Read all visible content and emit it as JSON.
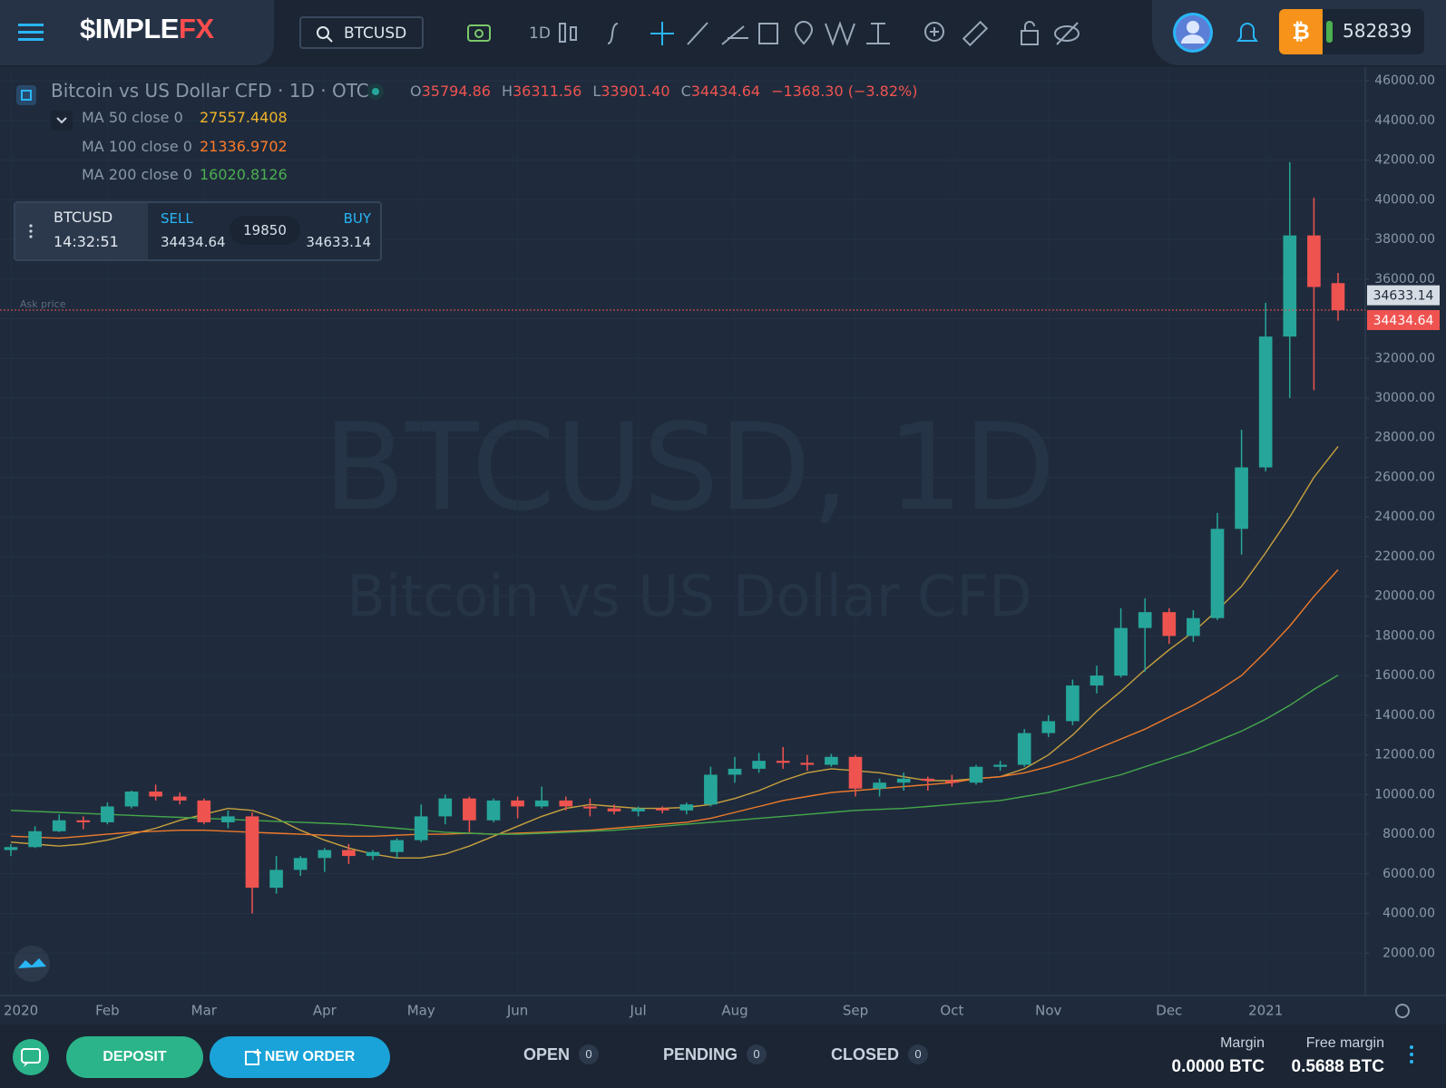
{
  "header": {
    "logo_main": "$IMPLE",
    "logo_accent": "FX",
    "search": "BTCUSD",
    "interval": "1D",
    "balance": "582839"
  },
  "legend": {
    "title": "Bitcoin vs US Dollar CFD · 1D · OTC",
    "ohlc": [
      {
        "label": "O",
        "value": 35794.86
      },
      {
        "label": "H",
        "value": 36311.56
      },
      {
        "label": "L",
        "value": 33901.4,
        "text": "33901.40"
      },
      {
        "label": "C",
        "value": 34434.64
      }
    ],
    "change": "−1368.30 (−3.82%)"
  },
  "trade": {
    "symbol": "BTCUSD",
    "time": "14:32:51",
    "sell_label": "SELL",
    "spread": 19850,
    "buy_label": "BUY"
  },
  "ask_label": "Ask price",
  "watermark": {
    "line1": "BTCUSD, 1D",
    "line2": "Bitcoin vs US Dollar CFD"
  },
  "chart_data": {
    "type": "candlestick",
    "categories": [
      "2020",
      null,
      null,
      null,
      "Feb",
      null,
      null,
      null,
      "Mar",
      null,
      null,
      null,
      null,
      "Apr",
      null,
      null,
      null,
      "May",
      null,
      null,
      null,
      "Jun",
      null,
      null,
      null,
      null,
      "Jul",
      null,
      null,
      null,
      "Aug",
      null,
      null,
      null,
      null,
      "Sep",
      null,
      null,
      null,
      "Oct",
      null,
      null,
      null,
      "Nov",
      null,
      null,
      null,
      null,
      "Dec",
      null,
      null,
      null,
      "2021",
      null,
      null,
      null
    ],
    "open": [
      7200,
      7350,
      8150,
      8700,
      8600,
      9400,
      10150,
      9900,
      9700,
      8600,
      8900,
      5300,
      6200,
      6800,
      7200,
      6900,
      7100,
      7700,
      8900,
      9800,
      8700,
      9700,
      9400,
      9700,
      9400,
      9300,
      9150,
      9300,
      9200,
      9500,
      11000,
      11300,
      11700,
      11600,
      11500,
      11900,
      10300,
      10600,
      10800,
      10700,
      10600,
      11400,
      11500,
      13100,
      13700,
      15500,
      16000,
      18400,
      19200,
      18000,
      18900,
      23400,
      26500,
      33100,
      38200,
      35794.86
    ],
    "high": [
      7500,
      8400,
      9000,
      8900,
      9600,
      10200,
      10500,
      10100,
      9800,
      9200,
      9100,
      6900,
      6900,
      7300,
      7500,
      7200,
      7800,
      9500,
      10000,
      9900,
      9800,
      9900,
      10400,
      9900,
      9800,
      9500,
      9400,
      9400,
      9600,
      11400,
      11900,
      12100,
      12400,
      12000,
      12050,
      12000,
      10800,
      11100,
      10900,
      11000,
      11500,
      11700,
      13300,
      14000,
      15800,
      16500,
      19400,
      19900,
      19400,
      19300,
      24200,
      28400,
      34800,
      41900,
      40100,
      36311.56
    ],
    "low": [
      6900,
      7300,
      8100,
      8250,
      8500,
      9300,
      9700,
      9500,
      8500,
      8300,
      4000,
      5000,
      5900,
      6100,
      6500,
      6700,
      6800,
      7600,
      8500,
      8100,
      8600,
      8800,
      9300,
      9200,
      8900,
      9000,
      8900,
      9050,
      9000,
      9400,
      10600,
      11100,
      11300,
      11200,
      11400,
      9900,
      9900,
      10200,
      10200,
      10400,
      10500,
      11200,
      11400,
      12900,
      13500,
      15100,
      15900,
      16200,
      17600,
      17700,
      18800,
      22100,
      26300,
      30000,
      30400,
      33901.4
    ],
    "close": [
      7350,
      8150,
      8700,
      8600,
      9400,
      10150,
      9900,
      9700,
      8600,
      8900,
      5300,
      6200,
      6800,
      7200,
      6900,
      7100,
      7700,
      8900,
      9800,
      8700,
      9700,
      9400,
      9700,
      9400,
      9300,
      9150,
      9300,
      9200,
      9500,
      11000,
      11300,
      11700,
      11600,
      11500,
      11900,
      10300,
      10600,
      10800,
      10700,
      10600,
      11400,
      11500,
      13100,
      13700,
      15500,
      16000,
      18400,
      19200,
      18000,
      18900,
      23400,
      26500,
      33100,
      38200,
      35600,
      34434.64
    ],
    "up_color": "#26a69a",
    "down_color": "#ef5350",
    "series": [
      {
        "name": "MA 50 close 0",
        "color": "#f0b429",
        "line_color": "#c9a13e",
        "values": [
          7600,
          7500,
          7400,
          7500,
          7700,
          8000,
          8300,
          8700,
          9000,
          9300,
          9200,
          8800,
          8200,
          7700,
          7300,
          7000,
          6800,
          6800,
          7000,
          7400,
          7900,
          8400,
          8900,
          9300,
          9500,
          9400,
          9300,
          9300,
          9350,
          9500,
          9800,
          10200,
          10700,
          11100,
          11300,
          11200,
          11100,
          10900,
          10700,
          10700,
          10800,
          10900,
          11300,
          12000,
          13000,
          14200,
          15200,
          16300,
          17300,
          18200,
          19300,
          20500,
          22200,
          24000,
          26000,
          27557.4408
        ]
      },
      {
        "name": "MA 100 close 0",
        "color": "#ff7b29",
        "line_color": "#f07a2a",
        "values": [
          7900,
          7850,
          7800,
          7900,
          8000,
          8100,
          8150,
          8200,
          8200,
          8150,
          8100,
          8050,
          8000,
          7950,
          7900,
          7900,
          7950,
          8000,
          8000,
          8050,
          8000,
          8050,
          8100,
          8150,
          8200,
          8300,
          8400,
          8500,
          8600,
          8800,
          9100,
          9400,
          9700,
          9900,
          10100,
          10200,
          10300,
          10400,
          10500,
          10600,
          10800,
          10900,
          11100,
          11400,
          11800,
          12300,
          12800,
          13300,
          13900,
          14500,
          15200,
          16000,
          17200,
          18500,
          20000,
          21336.9702
        ]
      },
      {
        "name": "MA 200 close 0",
        "color": "#4caf50",
        "line_color": "#45a84b",
        "values": [
          9200,
          9150,
          9100,
          9050,
          9000,
          8950,
          8900,
          8850,
          8800,
          8750,
          8700,
          8650,
          8600,
          8550,
          8500,
          8400,
          8300,
          8200,
          8100,
          8050,
          8000,
          8000,
          8050,
          8100,
          8150,
          8200,
          8300,
          8400,
          8500,
          8600,
          8700,
          8800,
          8900,
          9000,
          9100,
          9200,
          9250,
          9300,
          9400,
          9500,
          9600,
          9700,
          9900,
          10100,
          10400,
          10700,
          11000,
          11400,
          11800,
          12200,
          12700,
          13200,
          13800,
          14500,
          15300,
          16020.8126
        ]
      }
    ],
    "price_lines": [
      {
        "value": 34633.14,
        "label": "34633.14",
        "color": "#d5dce4",
        "text_color": "#1e2a3a"
      },
      {
        "value": 34434.64,
        "label": "34434.64",
        "color": "#ef5350",
        "text_color": "#ffffff"
      }
    ],
    "ylim": [
      0,
      46600
    ],
    "yticks": [
      {
        "value": 2000,
        "label": "2000.00"
      },
      {
        "value": 4000,
        "label": "4000.00"
      },
      {
        "value": 6000,
        "label": "6000.00"
      },
      {
        "value": 8000,
        "label": "8000.00"
      },
      {
        "value": 10000,
        "label": "10000.00"
      },
      {
        "value": 12000,
        "label": "12000.00"
      },
      {
        "value": 14000,
        "label": "14000.00"
      },
      {
        "value": 16000,
        "label": "16000.00"
      },
      {
        "value": 18000,
        "label": "18000.00"
      },
      {
        "value": 20000,
        "label": "20000.00"
      },
      {
        "value": 22000,
        "label": "22000.00"
      },
      {
        "value": 24000,
        "label": "24000.00"
      },
      {
        "value": 26000,
        "label": "26000.00"
      },
      {
        "value": 28000,
        "label": "28000.00"
      },
      {
        "value": 30000,
        "label": "30000.00"
      },
      {
        "value": 32000,
        "label": "32000.00"
      },
      {
        "value": 34000,
        "label": "34000.00"
      },
      {
        "value": 36000,
        "label": "36000.00"
      },
      {
        "value": 38000,
        "label": "38000.00"
      },
      {
        "value": 40000,
        "label": "40000.00"
      },
      {
        "value": 42000,
        "label": "42000.00"
      },
      {
        "value": 44000,
        "label": "44000.00"
      },
      {
        "value": 46000,
        "label": "46000.00"
      }
    ],
    "grid": true
  },
  "footer": {
    "deposit": "DEPOSIT",
    "new_order": "NEW ORDER",
    "tabs": [
      {
        "label": "OPEN",
        "count": 0
      },
      {
        "label": "PENDING",
        "count": 0
      },
      {
        "label": "CLOSED",
        "count": 0
      }
    ],
    "margin_label": "Margin",
    "margin": "0.0000 BTC",
    "free_margin_label": "Free margin",
    "free_margin": "0.5688 BTC"
  }
}
